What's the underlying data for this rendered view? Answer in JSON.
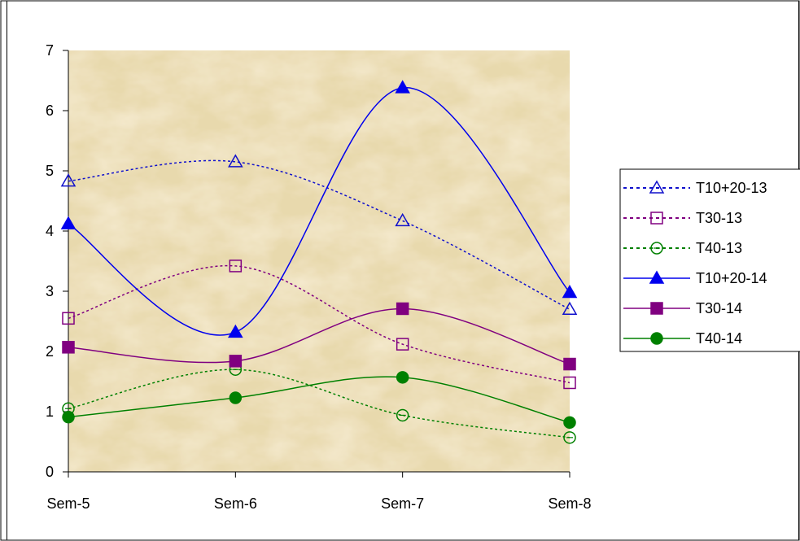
{
  "chart_data": {
    "type": "line",
    "title": "",
    "xlabel": "",
    "ylabel": "",
    "categories": [
      "Sem-5",
      "Sem-6",
      "Sem-7",
      "Sem-8"
    ],
    "ylim": [
      0,
      7
    ],
    "yticks": [
      0,
      1,
      2,
      3,
      4,
      5,
      6,
      7
    ],
    "grid": false,
    "legend_position": "right",
    "plot_background": "parchment texture",
    "series": [
      {
        "name": "T10+20-13",
        "values": [
          4.83,
          5.15,
          4.17,
          2.7
        ],
        "color": "#1010cc",
        "line": "dotted",
        "marker": "triangle",
        "filled": false
      },
      {
        "name": "T30-13",
        "values": [
          2.55,
          3.42,
          2.12,
          1.48
        ],
        "color": "#800080",
        "line": "dotted",
        "marker": "square",
        "filled": false
      },
      {
        "name": "T40-13",
        "values": [
          1.05,
          1.7,
          0.94,
          0.57
        ],
        "color": "#008000",
        "line": "dotted",
        "marker": "circle",
        "filled": false
      },
      {
        "name": "T10+20-14",
        "values": [
          4.12,
          2.32,
          6.38,
          2.98
        ],
        "color": "#0000ee",
        "line": "solid",
        "marker": "triangle",
        "filled": true
      },
      {
        "name": "T30-14",
        "values": [
          2.07,
          1.84,
          2.71,
          1.79
        ],
        "color": "#800080",
        "line": "solid",
        "marker": "square",
        "filled": true
      },
      {
        "name": "T40-14",
        "values": [
          0.91,
          1.23,
          1.57,
          0.82
        ],
        "color": "#008000",
        "line": "solid",
        "marker": "circle",
        "filled": true
      }
    ]
  }
}
